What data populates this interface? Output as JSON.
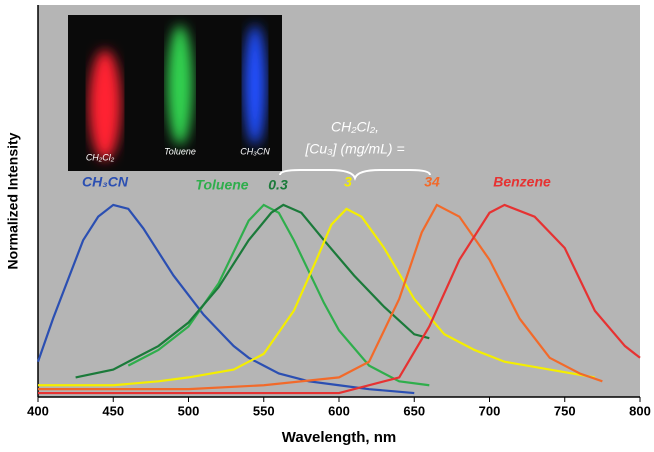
{
  "chart_data": {
    "type": "line",
    "xlabel": "Wavelength, nm",
    "ylabel": "Normalized Intensity",
    "xlim": [
      400,
      800
    ],
    "xticks": [
      400,
      450,
      500,
      550,
      600,
      650,
      700,
      750,
      800
    ],
    "ylim": [
      0,
      1
    ],
    "annotations": [
      "CH₂Cl₂,",
      "[Cu₃] (mg/mL) ="
    ],
    "inset_labels": [
      "CH₂Cl₂",
      "Toluene",
      "CH₃CN"
    ],
    "series": [
      {
        "name": "CH₃CN",
        "color": "#2b4fb2",
        "x": [
          400,
          410,
          420,
          430,
          440,
          450,
          460,
          470,
          480,
          490,
          500,
          510,
          520,
          530,
          540,
          550,
          560,
          580,
          600,
          620,
          650
        ],
        "values": [
          0.09,
          0.2,
          0.3,
          0.4,
          0.46,
          0.49,
          0.48,
          0.43,
          0.37,
          0.31,
          0.26,
          0.21,
          0.17,
          0.13,
          0.1,
          0.08,
          0.06,
          0.04,
          0.03,
          0.02,
          0.01
        ]
      },
      {
        "name": "Toluene",
        "color": "#2fae4c",
        "x": [
          460,
          480,
          500,
          520,
          530,
          540,
          550,
          560,
          570,
          580,
          590,
          600,
          620,
          640,
          660
        ],
        "values": [
          0.08,
          0.12,
          0.18,
          0.29,
          0.37,
          0.45,
          0.49,
          0.47,
          0.4,
          0.32,
          0.24,
          0.17,
          0.08,
          0.04,
          0.03
        ]
      },
      {
        "name": "0.3",
        "color": "#1b7a3a",
        "x": [
          425,
          450,
          480,
          500,
          520,
          540,
          555,
          563,
          575,
          590,
          610,
          630,
          650,
          660
        ],
        "values": [
          0.05,
          0.07,
          0.13,
          0.19,
          0.28,
          0.4,
          0.47,
          0.49,
          0.47,
          0.4,
          0.31,
          0.23,
          0.16,
          0.15
        ]
      },
      {
        "name": "3",
        "color": "#f4ee00",
        "x": [
          400,
          450,
          480,
          500,
          530,
          550,
          570,
          585,
          595,
          605,
          615,
          630,
          650,
          670,
          690,
          710,
          740,
          770
        ],
        "values": [
          0.03,
          0.03,
          0.04,
          0.05,
          0.07,
          0.11,
          0.22,
          0.35,
          0.44,
          0.48,
          0.46,
          0.38,
          0.25,
          0.16,
          0.12,
          0.09,
          0.07,
          0.05
        ]
      },
      {
        "name": "34",
        "color": "#f26a2a",
        "x": [
          400,
          500,
          550,
          600,
          620,
          640,
          655,
          665,
          680,
          700,
          720,
          740,
          760,
          775
        ],
        "values": [
          0.02,
          0.02,
          0.03,
          0.05,
          0.09,
          0.25,
          0.42,
          0.49,
          0.46,
          0.35,
          0.2,
          0.1,
          0.06,
          0.04
        ]
      },
      {
        "name": "Benzene",
        "color": "#e63232",
        "x": [
          400,
          600,
          640,
          660,
          680,
          700,
          710,
          730,
          750,
          770,
          790,
          800
        ],
        "values": [
          0.01,
          0.01,
          0.05,
          0.18,
          0.35,
          0.47,
          0.49,
          0.46,
          0.38,
          0.22,
          0.13,
          0.1
        ]
      }
    ]
  }
}
